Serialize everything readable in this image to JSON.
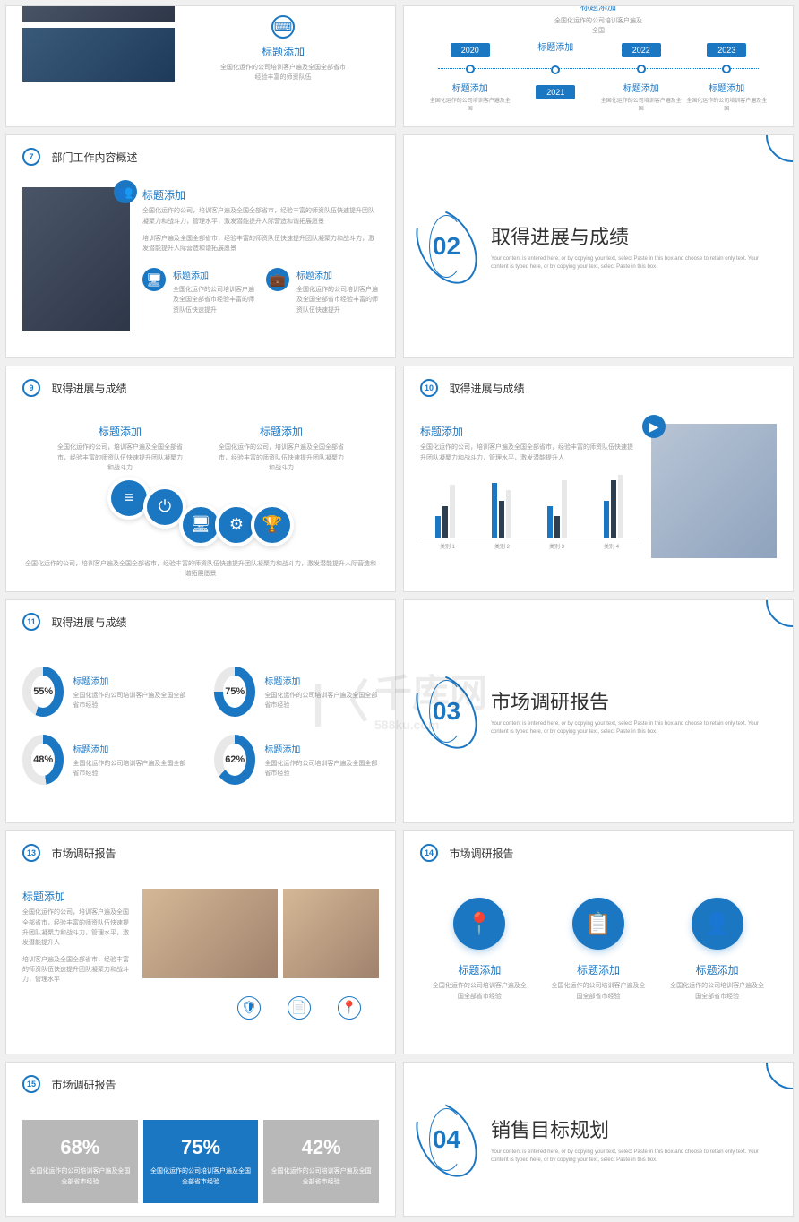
{
  "colors": {
    "primary": "#1c77c3",
    "dark": "#2c3e50",
    "gray": "#b8b8b8",
    "lightgray": "#e8e8e8",
    "text": "#333",
    "muted": "#999"
  },
  "watermark": {
    "main": "千库网",
    "sub": "588ku.com",
    "logo": "K"
  },
  "slides": {
    "s5": {
      "title_add": "标题添加",
      "desc": "全国化运作的公司培训客户遍及全国全部省市经验丰富的师资队伍"
    },
    "s6": {
      "years": [
        "2020",
        "2021",
        "2022",
        "2023"
      ],
      "top_title": "标题添加",
      "top_desc": "全国化运作的公司培训客户遍及全国",
      "item_title": "标题添加",
      "item_desc": "全国化运作的公司培训客户遍及全国"
    },
    "s7": {
      "num": "7",
      "title": "部门工作内容概述",
      "h1": "标题添加",
      "p1": "全国化运作的公司，培训客户遍及全国全部省市，经验丰富的师资队伍快速提升团队凝聚力和战斗力，管理水平，激发潜能提升人际营造和谐拓展愿景",
      "p2": "培训客户遍及全国全部省市，经验丰富的师资队伍快速提升团队凝聚力和战斗力，激发潜能提升人际营造和谐拓展愿景",
      "sub1": "标题添加",
      "sub1_desc": "全国化运作的公司培训客户遍及全国全部省市经验丰富的师资队伍快速提升",
      "sub2": "标题添加",
      "sub2_desc": "全国化运作的公司培训客户遍及全国全部省市经验丰富的师资队伍快速提升"
    },
    "s8": {
      "num": "02",
      "title": "取得进展与成绩",
      "sub": "Your content is entered here, or by copying your text, select Paste in this box and choose to retain only text.\nYour content is typed here, or by copying your text, select Paste in this box."
    },
    "s9": {
      "num": "9",
      "title": "取得进展与成绩",
      "col1_h": "标题添加",
      "col1_d": "全国化运作的公司，培训客户遍及全国全部省市，经验丰富的师资队伍快速提升团队凝聚力和战斗力",
      "col2_h": "标题添加",
      "col2_d": "全国化运作的公司，培训客户遍及全国全部省市，经验丰富的师资队伍快速提升团队凝聚力和战斗力",
      "bottom": "全国化运作的公司，培训客户遍及全国全部省市，经验丰富的师资队伍快速提升团队凝聚力和战斗力，激发潜能提升人际营造和谐拓展愿景"
    },
    "s10": {
      "num": "10",
      "title": "取得进展与成绩",
      "h": "标题添加",
      "d": "全国化运作的公司，培训客户遍及全国全部省市，经验丰富的师资队伍快速提升团队凝聚力和战斗力，管理水平，激发潜能提升人",
      "chart": {
        "categories": [
          "类别 1",
          "类别 2",
          "类别 3",
          "类别 4"
        ],
        "series_colors": [
          "#1c77c3",
          "#2c3e50",
          "#e8e8e8"
        ],
        "values": [
          [
            20,
            30,
            50
          ],
          [
            52,
            35,
            45
          ],
          [
            30,
            20,
            55
          ],
          [
            35,
            55,
            60
          ]
        ],
        "ymax": 60
      }
    },
    "s11": {
      "num": "11",
      "title": "取得进展与成绩",
      "items": [
        {
          "pct": "55%",
          "val": 55,
          "h": "标题添加",
          "d": "全国化运作的公司培训客户遍及全国全部省市经验"
        },
        {
          "pct": "75%",
          "val": 75,
          "h": "标题添加",
          "d": "全国化运作的公司培训客户遍及全国全部省市经验"
        },
        {
          "pct": "48%",
          "val": 48,
          "h": "标题添加",
          "d": "全国化运作的公司培训客户遍及全国全部省市经验"
        },
        {
          "pct": "62%",
          "val": 62,
          "h": "标题添加",
          "d": "全国化运作的公司培训客户遍及全国全部省市经验"
        }
      ]
    },
    "s12": {
      "num": "03",
      "title": "市场调研报告",
      "sub": "Your content is entered here, or by copying your text, select Paste in this box and choose to retain only text.\nYour content is typed here, or by copying your text, select Paste in this box."
    },
    "s13": {
      "num": "13",
      "title": "市场调研报告",
      "h": "标题添加",
      "p1": "全国化运作的公司，培训客户遍及全国全部省市，经验丰富的师资队伍快速提升团队凝聚力和战斗力，管理水平，激发潜能提升人",
      "p2": "培训客户遍及全国全部省市，经验丰富的师资队伍快速提升团队凝聚力和战斗力，管理水平"
    },
    "s14": {
      "num": "14",
      "title": "市场调研报告",
      "items": [
        {
          "h": "标题添加",
          "d": "全国化运作的公司培训客户遍及全国全部省市经验"
        },
        {
          "h": "标题添加",
          "d": "全国化运作的公司培训客户遍及全国全部省市经验"
        },
        {
          "h": "标题添加",
          "d": "全国化运作的公司培训客户遍及全国全部省市经验"
        }
      ]
    },
    "s15": {
      "num": "15",
      "title": "市场调研报告",
      "stats": [
        {
          "pct": "68%",
          "d": "全国化运作的公司培训客户遍及全国全部省市经验",
          "bg": "#b8b8b8",
          "fg": "#fff"
        },
        {
          "pct": "75%",
          "d": "全国化运作的公司培训客户遍及全国全部省市经验",
          "bg": "#1c77c3",
          "fg": "#fff"
        },
        {
          "pct": "42%",
          "d": "全国化运作的公司培训客户遍及全国全部省市经验",
          "bg": "#b8b8b8",
          "fg": "#fff"
        }
      ]
    },
    "s16": {
      "num": "04",
      "title": "销售目标规划",
      "sub": "Your content is entered here, or by copying your text, select Paste in this box and choose to retain only text.\nYour content is typed here, or by copying your text, select Paste in this box."
    }
  }
}
